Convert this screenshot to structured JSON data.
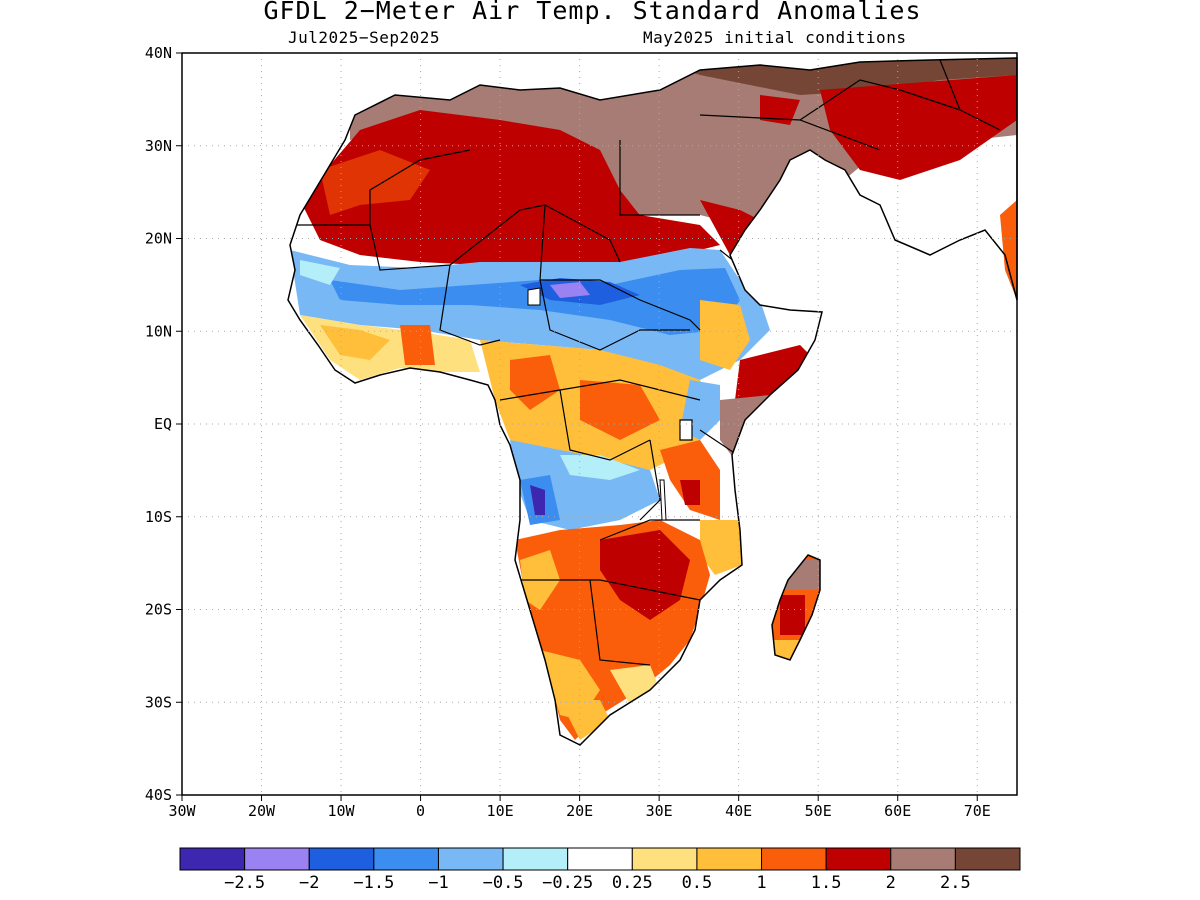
{
  "title": "GFDL 2−Meter Air Temp. Standard Anomalies",
  "subtitle_left": "Jul2025−Sep2025",
  "subtitle_right": "May2025 initial conditions",
  "map": {
    "extent": {
      "lon": [
        -30,
        75
      ],
      "lat": [
        -40,
        40
      ]
    },
    "grid": true,
    "lat_ticks": [
      {
        "value": 40,
        "label": "40N"
      },
      {
        "value": 30,
        "label": "30N"
      },
      {
        "value": 20,
        "label": "20N"
      },
      {
        "value": 10,
        "label": "10N"
      },
      {
        "value": 0,
        "label": "EQ"
      },
      {
        "value": -10,
        "label": "10S"
      },
      {
        "value": -20,
        "label": "20S"
      },
      {
        "value": -30,
        "label": "30S"
      },
      {
        "value": -40,
        "label": "40S"
      }
    ],
    "lon_ticks": [
      {
        "value": -30,
        "label": "30W"
      },
      {
        "value": -20,
        "label": "20W"
      },
      {
        "value": -10,
        "label": "10W"
      },
      {
        "value": 0,
        "label": "0"
      },
      {
        "value": 10,
        "label": "10E"
      },
      {
        "value": 20,
        "label": "20E"
      },
      {
        "value": 30,
        "label": "30E"
      },
      {
        "value": 40,
        "label": "40E"
      },
      {
        "value": 50,
        "label": "50E"
      },
      {
        "value": 60,
        "label": "60E"
      },
      {
        "value": 70,
        "label": "70E"
      }
    ]
  },
  "colorbar": {
    "colors": [
      "#3d26b0",
      "#9b82f2",
      "#1e5fe0",
      "#3b8ef0",
      "#78b8f5",
      "#b4eef8",
      "#ffffff",
      "#ffe07e",
      "#ffbf3a",
      "#fb5e0a",
      "#be0000",
      "#a77c74",
      "#754535"
    ],
    "labels": [
      "−2.5",
      "−2",
      "−1.5",
      "−1",
      "−0.5",
      "−0.25",
      "0.25",
      "0.5",
      "1",
      "1.5",
      "2",
      "2.5"
    ]
  }
}
